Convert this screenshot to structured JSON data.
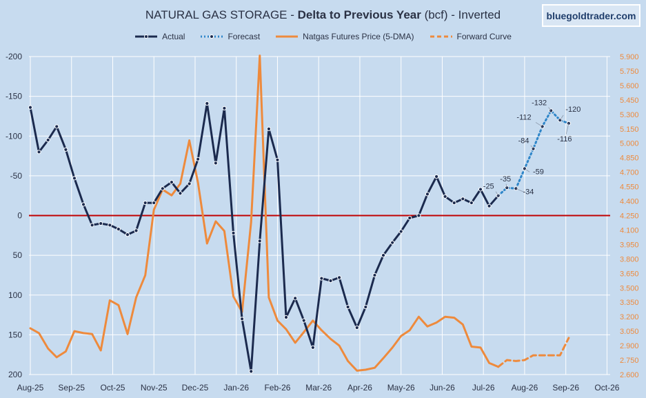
{
  "title": {
    "part1": "NATURAL GAS STORAGE - ",
    "part2": "Delta to Previous Year",
    "part3": " (bcf) - Inverted"
  },
  "brand": "bluegoldtrader.com",
  "colors": {
    "background": "#c7dbef",
    "actual": "#1b2a4e",
    "forecast": "#2f86c9",
    "futures": "#ee8a3c",
    "forward": "#ee8a3c",
    "zero_line": "#c00000",
    "grid": "#ffffff"
  },
  "chart_data": {
    "type": "line",
    "x_labels": [
      "Aug-25",
      "Sep-25",
      "Oct-25",
      "Nov-25",
      "Dec-25",
      "Jan-26",
      "Feb-26",
      "Mar-26",
      "Apr-26",
      "May-26",
      "Jun-26",
      "Jul-26",
      "Aug-26",
      "Sep-26",
      "Oct-26"
    ],
    "y_left": {
      "min": -200,
      "max": 200,
      "ticks": [
        "-200",
        "-150",
        "-100",
        "-50",
        "0",
        "50",
        "100",
        "150",
        "200"
      ],
      "inverted": true
    },
    "y_right": {
      "min": 2.6,
      "max": 5.9,
      "ticks": [
        "2.600",
        "2.750",
        "2.900",
        "3.050",
        "3.200",
        "3.350",
        "3.500",
        "3.650",
        "3.800",
        "3.950",
        "4.100",
        "4.250",
        "4.400",
        "4.550",
        "4.700",
        "4.850",
        "5.000",
        "5.150",
        "5.300",
        "5.450",
        "5.600",
        "5.750",
        "5.900"
      ]
    },
    "series": [
      {
        "name": "Actual",
        "axis": "left",
        "points": [
          [
            0,
            -136
          ],
          [
            0.21,
            -80
          ],
          [
            0.43,
            -95
          ],
          [
            0.64,
            -112
          ],
          [
            0.86,
            -83
          ],
          [
            1.07,
            -47
          ],
          [
            1.29,
            -14
          ],
          [
            1.5,
            12
          ],
          [
            1.71,
            10
          ],
          [
            1.93,
            12
          ],
          [
            2.14,
            17
          ],
          [
            2.36,
            24
          ],
          [
            2.57,
            19
          ],
          [
            2.79,
            -16
          ],
          [
            3.0,
            -16
          ],
          [
            3.21,
            -34
          ],
          [
            3.43,
            -42
          ],
          [
            3.64,
            -28
          ],
          [
            3.86,
            -40
          ],
          [
            4.07,
            -71
          ],
          [
            4.29,
            -141
          ],
          [
            4.5,
            -66
          ],
          [
            4.71,
            -135
          ],
          [
            4.93,
            22
          ],
          [
            5.14,
            130
          ],
          [
            5.36,
            196
          ],
          [
            5.57,
            32
          ],
          [
            5.79,
            -109
          ],
          [
            6.0,
            -70
          ],
          [
            6.21,
            128
          ],
          [
            6.43,
            104
          ],
          [
            6.64,
            132
          ],
          [
            6.86,
            166
          ],
          [
            7.07,
            79
          ],
          [
            7.29,
            82
          ],
          [
            7.5,
            78
          ],
          [
            7.71,
            115
          ],
          [
            7.93,
            141
          ],
          [
            8.14,
            115
          ],
          [
            8.36,
            75
          ],
          [
            8.57,
            50
          ],
          [
            8.79,
            34
          ],
          [
            9.0,
            20
          ],
          [
            9.21,
            3
          ],
          [
            9.43,
            0
          ],
          [
            9.64,
            -27
          ],
          [
            9.86,
            -49
          ],
          [
            10.07,
            -24
          ],
          [
            10.29,
            -16
          ],
          [
            10.5,
            -21
          ],
          [
            10.71,
            -16
          ],
          [
            10.93,
            -33
          ],
          [
            11.14,
            -12
          ],
          [
            11.36,
            -25
          ]
        ]
      },
      {
        "name": "Forecast",
        "axis": "left",
        "points": [
          [
            11.36,
            -25
          ],
          [
            11.57,
            -35
          ],
          [
            11.79,
            -34
          ],
          [
            12.0,
            -59
          ],
          [
            12.21,
            -84
          ],
          [
            12.43,
            -112
          ],
          [
            12.64,
            -132
          ],
          [
            12.86,
            -120
          ],
          [
            13.07,
            -116
          ]
        ]
      },
      {
        "name": "Natgas Futures Price (5-DMA)",
        "axis": "right",
        "points": [
          [
            0,
            3.08
          ],
          [
            0.21,
            3.03
          ],
          [
            0.43,
            2.87
          ],
          [
            0.64,
            2.78
          ],
          [
            0.86,
            2.84
          ],
          [
            1.07,
            3.05
          ],
          [
            1.29,
            3.03
          ],
          [
            1.5,
            3.02
          ],
          [
            1.71,
            2.85
          ],
          [
            1.93,
            3.37
          ],
          [
            2.14,
            3.32
          ],
          [
            2.36,
            3.02
          ],
          [
            2.57,
            3.4
          ],
          [
            2.79,
            3.63
          ],
          [
            3.0,
            4.31
          ],
          [
            3.21,
            4.52
          ],
          [
            3.43,
            4.46
          ],
          [
            3.64,
            4.58
          ],
          [
            3.86,
            5.03
          ],
          [
            4.07,
            4.59
          ],
          [
            4.29,
            3.96
          ],
          [
            4.5,
            4.19
          ],
          [
            4.71,
            4.09
          ],
          [
            4.93,
            3.41
          ],
          [
            5.14,
            3.25
          ],
          [
            5.36,
            4.18
          ],
          [
            5.57,
            5.91
          ],
          [
            5.79,
            3.4
          ],
          [
            6.0,
            3.16
          ],
          [
            6.21,
            3.07
          ],
          [
            6.43,
            2.93
          ],
          [
            6.64,
            3.04
          ],
          [
            6.86,
            3.16
          ],
          [
            7.07,
            3.06
          ],
          [
            7.29,
            2.97
          ],
          [
            7.5,
            2.9
          ],
          [
            7.71,
            2.74
          ],
          [
            7.93,
            2.64
          ],
          [
            8.14,
            2.65
          ],
          [
            8.36,
            2.67
          ],
          [
            8.57,
            2.77
          ],
          [
            8.79,
            2.88
          ],
          [
            9.0,
            3.0
          ],
          [
            9.21,
            3.06
          ],
          [
            9.43,
            3.2
          ],
          [
            9.64,
            3.1
          ],
          [
            9.86,
            3.14
          ],
          [
            10.07,
            3.2
          ],
          [
            10.29,
            3.19
          ],
          [
            10.5,
            3.12
          ],
          [
            10.71,
            2.89
          ],
          [
            10.93,
            2.88
          ],
          [
            11.14,
            2.72
          ],
          [
            11.36,
            2.68
          ]
        ]
      },
      {
        "name": "Forward Curve",
        "axis": "right",
        "points": [
          [
            11.36,
            2.68
          ],
          [
            11.57,
            2.75
          ],
          [
            11.79,
            2.74
          ],
          [
            12.0,
            2.75
          ],
          [
            12.21,
            2.8
          ],
          [
            12.43,
            2.8
          ],
          [
            12.64,
            2.8
          ],
          [
            12.86,
            2.8
          ],
          [
            13.07,
            2.98
          ]
        ]
      }
    ],
    "annotations": [
      {
        "text": "-25",
        "series": "Forecast",
        "point": [
          11.36,
          -25
        ]
      },
      {
        "text": "-35",
        "series": "Forecast",
        "point": [
          11.57,
          -35
        ]
      },
      {
        "text": "-34",
        "series": "Forecast",
        "point": [
          11.79,
          -34
        ]
      },
      {
        "text": "-59",
        "series": "Forecast",
        "point": [
          12.0,
          -59
        ]
      },
      {
        "text": "-84",
        "series": "Forecast",
        "point": [
          12.21,
          -84
        ]
      },
      {
        "text": "-112",
        "series": "Forecast",
        "point": [
          12.43,
          -112
        ]
      },
      {
        "text": "-132",
        "series": "Forecast",
        "point": [
          12.64,
          -132
        ]
      },
      {
        "text": "-120",
        "series": "Forecast",
        "point": [
          12.86,
          -120
        ]
      },
      {
        "text": "-116",
        "series": "Forecast",
        "point": [
          13.07,
          -116
        ]
      }
    ],
    "legend_placement": "top-center",
    "grid": true
  }
}
